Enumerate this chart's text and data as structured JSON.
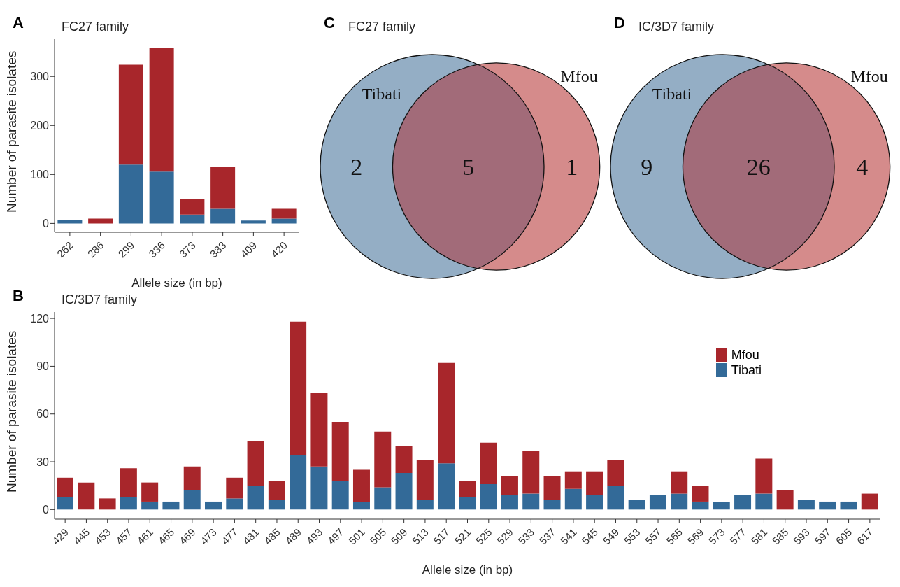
{
  "chart_data": [
    {
      "type": "bar",
      "title": "FC27 family",
      "annotations": [
        "A"
      ],
      "xlabel": "Allele size (in bp)",
      "ylabel": "Number of parasite isolates",
      "stacked": true,
      "categories": [
        "262",
        "286",
        "299",
        "336",
        "373",
        "383",
        "409",
        "420"
      ],
      "series": [
        {
          "color": "#336a98",
          "values": [
            7,
            0,
            120,
            106,
            18,
            30,
            6,
            10
          ]
        },
        {
          "color": "#a8262b",
          "values": [
            0,
            10,
            204,
            252,
            32,
            86,
            0,
            20
          ]
        }
      ],
      "ylim": [
        -18,
        376
      ],
      "yticks": [
        0,
        100,
        200,
        300
      ],
      "grid": false,
      "legend": false
    },
    {
      "type": "other",
      "title": "FC27 family",
      "annotations": [
        "C"
      ],
      "categories": [
        "Tibati",
        null,
        "Mfou"
      ],
      "values": [
        2,
        5,
        1
      ],
      "data_labels": true,
      "colors": [
        "#94aec5",
        "#a26b79",
        "#d58b8b"
      ]
    },
    {
      "type": "other",
      "title": "IC/3D7 family",
      "annotations": [
        "D"
      ],
      "categories": [
        "Tibati",
        null,
        "Mfou"
      ],
      "values": [
        9,
        26,
        4
      ],
      "data_labels": true,
      "colors": [
        "#94aec5",
        "#a26b79",
        "#d58b8b"
      ]
    },
    {
      "type": "bar",
      "title": "IC/3D7 family",
      "annotations": [
        "B"
      ],
      "xlabel": "Allele size (in bp)",
      "ylabel": "Number of parasite isolates",
      "stacked": true,
      "categories": [
        "429",
        "445",
        "453",
        "457",
        "461",
        "465",
        "469",
        "473",
        "477",
        "481",
        "485",
        "489",
        "493",
        "497",
        "501",
        "505",
        "509",
        "513",
        "517",
        "521",
        "525",
        "529",
        "533",
        "537",
        "541",
        "545",
        "549",
        "553",
        "557",
        "565",
        "569",
        "573",
        "577",
        "581",
        "585",
        "593",
        "597",
        "605",
        "617"
      ],
      "series": [
        {
          "name": "Tibati",
          "color": "#336a98",
          "values": [
            8,
            0,
            0,
            8,
            5,
            5,
            12,
            5,
            7,
            15,
            6,
            34,
            27,
            18,
            5,
            14,
            23,
            6,
            29,
            8,
            16,
            9,
            10,
            6,
            13,
            9,
            15,
            6,
            9,
            10,
            5,
            5,
            9,
            10,
            0,
            6,
            5,
            5,
            0
          ]
        },
        {
          "name": "Mfou",
          "color": "#a8262b",
          "values": [
            12,
            17,
            7,
            18,
            12,
            0,
            15,
            0,
            13,
            28,
            12,
            84,
            46,
            37,
            20,
            35,
            17,
            25,
            63,
            10,
            26,
            12,
            27,
            15,
            11,
            15,
            16,
            0,
            0,
            14,
            10,
            0,
            0,
            22,
            12,
            0,
            0,
            0,
            10
          ]
        }
      ],
      "ylim": [
        -6,
        124
      ],
      "yticks": [
        0,
        30,
        60,
        90,
        120
      ],
      "grid": false,
      "legend": "top right"
    }
  ]
}
